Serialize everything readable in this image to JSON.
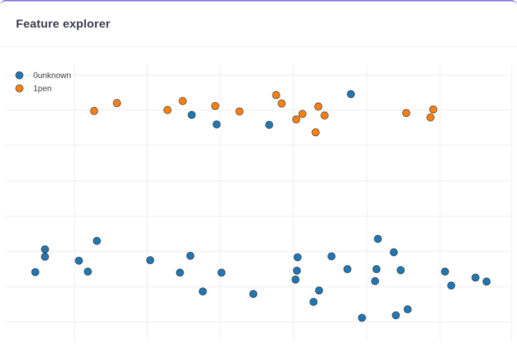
{
  "panel": {
    "title": "Feature explorer"
  },
  "chart_data": {
    "type": "scatter",
    "title": "",
    "xlabel": "",
    "ylabel": "",
    "xlim": [
      0,
      747
    ],
    "ylim": [
      0,
      100
    ],
    "grid": true,
    "legend_placement": "top-left",
    "series": [
      {
        "name": "0unknown",
        "color": "#1f77b4",
        "points": [
          [
            277,
            84.0
          ],
          [
            313,
            80.2
          ],
          [
            389,
            80.0
          ],
          [
            507,
            92.4
          ],
          [
            65,
            29.8
          ],
          [
            65,
            26.8
          ],
          [
            140,
            33.2
          ],
          [
            114,
            25.2
          ],
          [
            51,
            20.6
          ],
          [
            127,
            20.8
          ],
          [
            217,
            25.4
          ],
          [
            275,
            27.2
          ],
          [
            260,
            20.4
          ],
          [
            320,
            20.4
          ],
          [
            293,
            12.8
          ],
          [
            366,
            11.8
          ],
          [
            430,
            26.6
          ],
          [
            429,
            21.2
          ],
          [
            427,
            17.6
          ],
          [
            479,
            27.0
          ],
          [
            502,
            21.8
          ],
          [
            461,
            13.2
          ],
          [
            453,
            8.6
          ],
          [
            523,
            2.2
          ],
          [
            546,
            34.0
          ],
          [
            569,
            28.6
          ],
          [
            544,
            21.8
          ],
          [
            542,
            17.0
          ],
          [
            579,
            21.4
          ],
          [
            572,
            3.2
          ],
          [
            589,
            5.6
          ],
          [
            643,
            20.8
          ],
          [
            652,
            15.2
          ],
          [
            687,
            18.4
          ],
          [
            703,
            16.8
          ]
        ]
      },
      {
        "name": "1pen",
        "color": "#ff7f0e",
        "points": [
          [
            136,
            85.6
          ],
          [
            169,
            88.8
          ],
          [
            242,
            86.0
          ],
          [
            264,
            89.6
          ],
          [
            311,
            87.6
          ],
          [
            346,
            85.4
          ],
          [
            399,
            92.0
          ],
          [
            407,
            88.6
          ],
          [
            437,
            84.4
          ],
          [
            460,
            87.4
          ],
          [
            469,
            83.8
          ],
          [
            428,
            82.2
          ],
          [
            456,
            77.0
          ],
          [
            587,
            84.8
          ],
          [
            626,
            86.2
          ],
          [
            622,
            83.0
          ]
        ]
      }
    ]
  }
}
